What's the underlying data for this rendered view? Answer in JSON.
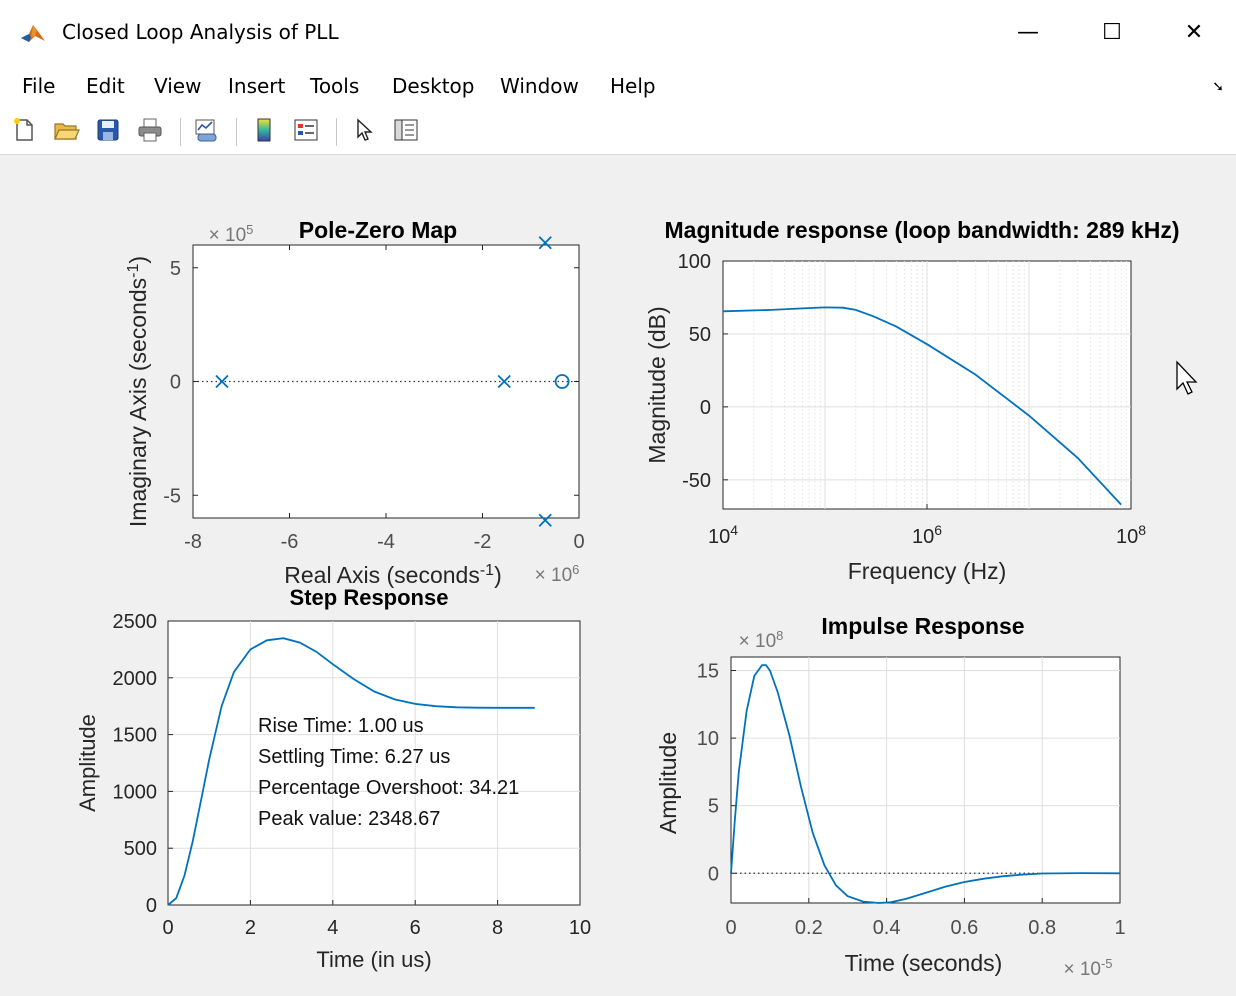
{
  "window": {
    "title": "Closed Loop Analysis of PLL",
    "minimize_label": "—",
    "maximize_label": "☐",
    "close_label": "✕"
  },
  "menu": [
    "File",
    "Edit",
    "View",
    "Insert",
    "Tools",
    "Desktop",
    "Window",
    "Help"
  ],
  "toolbar": [
    "new-figure-icon",
    "open-file-icon",
    "save-icon",
    "print-icon",
    "link-plot-icon",
    "colorbar-icon",
    "legend-icon",
    "edit-plot-pointer-icon",
    "property-inspector-icon"
  ],
  "chart_data": [
    {
      "type": "scatter",
      "title": "Pole-Zero Map",
      "xlabel": "Real Axis (seconds",
      "xlabel_sup": "-1",
      "xlabel_close": ")",
      "ylabel": "Imaginary Axis (seconds",
      "ylabel_sup": "-1",
      "ylabel_close": ")",
      "x_exponent_label": "× 10",
      "x_exponent": "6",
      "y_exponent_label": "× 10",
      "y_exponent": "5",
      "xlim": [
        -8,
        0
      ],
      "ylim": [
        -6,
        6
      ],
      "xticks": [
        -8,
        -6,
        -4,
        -2,
        0
      ],
      "xtick_labels": [
        "-8",
        "-6",
        "-4",
        "-2",
        "0"
      ],
      "yticks": [
        -5,
        0,
        5
      ],
      "ytick_labels": [
        "-5",
        "0",
        "5"
      ],
      "poles": [
        [
          -7.4,
          0
        ],
        [
          -1.55,
          0
        ],
        [
          -0.7,
          6.1
        ],
        [
          -0.7,
          -6.1
        ]
      ],
      "zeros": [
        [
          -0.35,
          0
        ]
      ],
      "grid": false
    },
    {
      "type": "line",
      "title": "Magnitude response (loop bandwidth: 289 kHz)",
      "xlabel": "Frequency  (Hz)",
      "ylabel": "Magnitude (dB)",
      "xscale": "log",
      "xlim": [
        10000,
        100000000
      ],
      "ylim": [
        -70,
        100
      ],
      "xticks": [
        10000,
        1000000,
        100000000
      ],
      "xtick_base": "10",
      "xtick_exponents": [
        "4",
        "6",
        "8"
      ],
      "yticks": [
        -50,
        0,
        50,
        100
      ],
      "ytick_labels": [
        "-50",
        "0",
        "50",
        "100"
      ],
      "x": [
        10000,
        30000,
        60000,
        100000,
        150000,
        200000,
        300000,
        500000,
        1000000,
        3000000,
        10000000,
        30000000,
        80000000
      ],
      "y": [
        65.5,
        66.5,
        67.5,
        68.2,
        68.0,
        66.5,
        62,
        55,
        43,
        22,
        -6,
        -35,
        -67
      ],
      "grid": true
    },
    {
      "type": "line",
      "title": "Step Response",
      "xlabel": "Time (in us)",
      "ylabel": "Amplitude",
      "xlim": [
        0,
        10
      ],
      "ylim": [
        0,
        2500
      ],
      "xticks": [
        0,
        2,
        4,
        6,
        8,
        10
      ],
      "xtick_labels": [
        "0",
        "2",
        "4",
        "6",
        "8",
        "10"
      ],
      "yticks": [
        0,
        500,
        1000,
        1500,
        2000,
        2500
      ],
      "ytick_labels": [
        "0",
        "500",
        "1000",
        "1500",
        "2000",
        "2500"
      ],
      "x": [
        0,
        0.2,
        0.4,
        0.6,
        0.8,
        1.0,
        1.3,
        1.6,
        2.0,
        2.4,
        2.8,
        3.2,
        3.6,
        4.0,
        4.5,
        5.0,
        5.5,
        6.0,
        6.5,
        7.0,
        7.5,
        8.0,
        8.5,
        8.9
      ],
      "y": [
        0,
        60,
        260,
        560,
        920,
        1280,
        1750,
        2050,
        2250,
        2330,
        2349,
        2310,
        2230,
        2120,
        1990,
        1880,
        1810,
        1770,
        1750,
        1740,
        1737,
        1736,
        1736,
        1736
      ],
      "annotations": [
        "Rise Time: 1.00 us",
        "Settling Time: 6.27 us",
        "Percentage Overshoot: 34.21",
        "Peak value: 2348.67"
      ],
      "grid": true
    },
    {
      "type": "line",
      "title": "Impulse Response",
      "xlabel": "Time (seconds)",
      "ylabel": "Amplitude",
      "x_exponent_label": "× 10",
      "x_exponent": "-5",
      "y_exponent_label": "× 10",
      "y_exponent": "8",
      "xlim": [
        0,
        1
      ],
      "ylim": [
        -2.2,
        16
      ],
      "xticks": [
        0,
        0.2,
        0.4,
        0.6,
        0.8,
        1
      ],
      "xtick_labels": [
        "0",
        "0.2",
        "0.4",
        "0.6",
        "0.8",
        "1"
      ],
      "yticks": [
        0,
        5,
        10,
        15
      ],
      "ytick_labels": [
        "0",
        "5",
        "10",
        "15"
      ],
      "x": [
        0,
        0.01,
        0.02,
        0.04,
        0.06,
        0.08,
        0.09,
        0.1,
        0.12,
        0.15,
        0.18,
        0.21,
        0.24,
        0.27,
        0.3,
        0.34,
        0.38,
        0.41,
        0.45,
        0.5,
        0.55,
        0.6,
        0.65,
        0.7,
        0.75,
        0.8,
        0.9,
        1.0
      ],
      "y": [
        0,
        4,
        7.5,
        12,
        14.6,
        15.4,
        15.4,
        15.0,
        13.4,
        10.2,
        6.4,
        3.0,
        0.6,
        -0.9,
        -1.7,
        -2.1,
        -2.2,
        -2.15,
        -1.9,
        -1.45,
        -1.0,
        -0.65,
        -0.4,
        -0.22,
        -0.1,
        -0.02,
        0.01,
        0.0
      ],
      "grid": true
    }
  ],
  "colors": {
    "line": "#0072bd",
    "axis": "#262626",
    "grid": "#dfdfdf",
    "tick_label": "#262626"
  }
}
